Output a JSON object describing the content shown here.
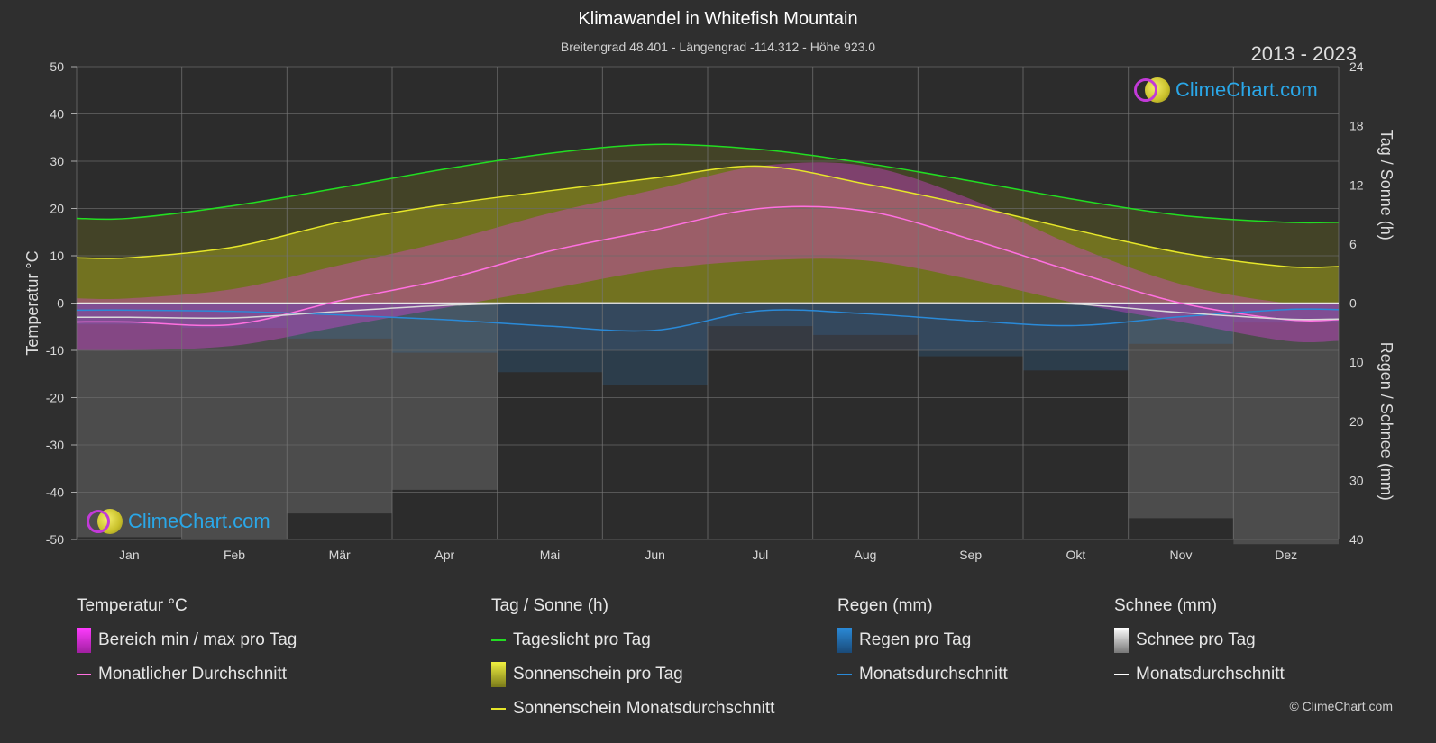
{
  "header": {
    "title": "Klimawandel in Whitefish Mountain",
    "subtitle": "Breitengrad 48.401 - Längengrad -114.312 - Höhe 923.0",
    "years": "2013 - 2023",
    "logo_text": "ClimeChart.com",
    "copyright": "© ClimeChart.com"
  },
  "legend": {
    "temperature": {
      "title": "Temperatur °C",
      "range": "Bereich min / max pro Tag",
      "avg": "Monatlicher Durchschnitt"
    },
    "sun": {
      "title": "Tag / Sonne (h)",
      "daylight": "Tageslicht pro Tag",
      "sunshine": "Sonnenschein pro Tag",
      "sunshine_avg": "Sonnenschein Monatsdurchschnitt"
    },
    "rain": {
      "title": "Regen (mm)",
      "per_day": "Regen pro Tag",
      "avg": "Monatsdurchschnitt"
    },
    "snow": {
      "title": "Schnee (mm)",
      "per_day": "Schnee pro Tag",
      "avg": "Monatsdurchschnitt"
    }
  },
  "colors": {
    "background": "#2f2f2f",
    "daylight": "#22dd22",
    "sunshine": "#e6e62a",
    "sunshine_fill": "#8c8c1e",
    "temp_range": "#e040e0",
    "temp_avg": "#ff70e0",
    "rain": "#2a8ad8",
    "snow": "#d8d8d8"
  },
  "chart_data": {
    "type": "line",
    "categories": [
      "Jan",
      "Feb",
      "Mär",
      "Apr",
      "Mai",
      "Jun",
      "Jul",
      "Aug",
      "Sep",
      "Okt",
      "Nov",
      "Dez"
    ],
    "y_left": {
      "label": "Temperatur °C",
      "ylim": [
        -50,
        50
      ],
      "ticks": [
        50,
        40,
        30,
        20,
        10,
        0,
        -10,
        -20,
        -30,
        -40,
        -50
      ]
    },
    "y_right_top": {
      "label": "Tag / Sonne (h)",
      "ylim": [
        0,
        24
      ],
      "ticks": [
        24,
        18,
        12,
        6,
        0
      ]
    },
    "y_right_bottom": {
      "label": "Regen / Schnee (mm)",
      "ylim": [
        0,
        40
      ],
      "ticks": [
        0,
        10,
        20,
        30,
        40
      ]
    },
    "grid": true,
    "series": [
      {
        "name": "Tageslicht pro Tag",
        "axis": "sun_h",
        "values": [
          8.6,
          9.9,
          11.7,
          13.6,
          15.2,
          16.1,
          15.6,
          14.2,
          12.4,
          10.5,
          8.9,
          8.2
        ]
      },
      {
        "name": "Sonnenschein Monatsdurchschnitt",
        "axis": "sun_h",
        "values": [
          4.6,
          5.7,
          8.2,
          10.0,
          11.4,
          12.7,
          13.9,
          12.1,
          9.9,
          7.4,
          5.1,
          3.7
        ]
      },
      {
        "name": "Monatlicher Durchschnitt",
        "axis": "temp_c",
        "values": [
          -4.0,
          -4.5,
          0.5,
          5.0,
          11.0,
          15.5,
          20.0,
          19.5,
          13.5,
          6.5,
          0.0,
          -3.5
        ]
      },
      {
        "name": "Monatsdurchschnitt Regen",
        "axis": "precip_mm",
        "values": [
          1.2,
          1.4,
          2.0,
          2.8,
          3.9,
          4.6,
          1.3,
          1.8,
          3.0,
          3.8,
          2.3,
          1.1
        ]
      },
      {
        "name": "Monatsdurchschnitt Schnee",
        "axis": "precip_mm",
        "values": [
          2.4,
          2.5,
          1.4,
          0.4,
          0.0,
          0.0,
          0.0,
          0.0,
          0.0,
          0.2,
          1.6,
          2.7
        ]
      }
    ],
    "temp_range_daily_mean": {
      "min": [
        -10,
        -9,
        -5,
        -1,
        3,
        7,
        9,
        9,
        5,
        0,
        -4,
        -8
      ],
      "max": [
        1,
        3,
        8,
        13,
        19,
        24,
        29,
        29,
        22,
        12,
        4,
        0
      ]
    },
    "sunshine_daily_mean": [
      4.6,
      5.7,
      8.2,
      10.0,
      11.4,
      12.7,
      13.9,
      12.1,
      9.9,
      7.4,
      5.1,
      3.7
    ]
  }
}
